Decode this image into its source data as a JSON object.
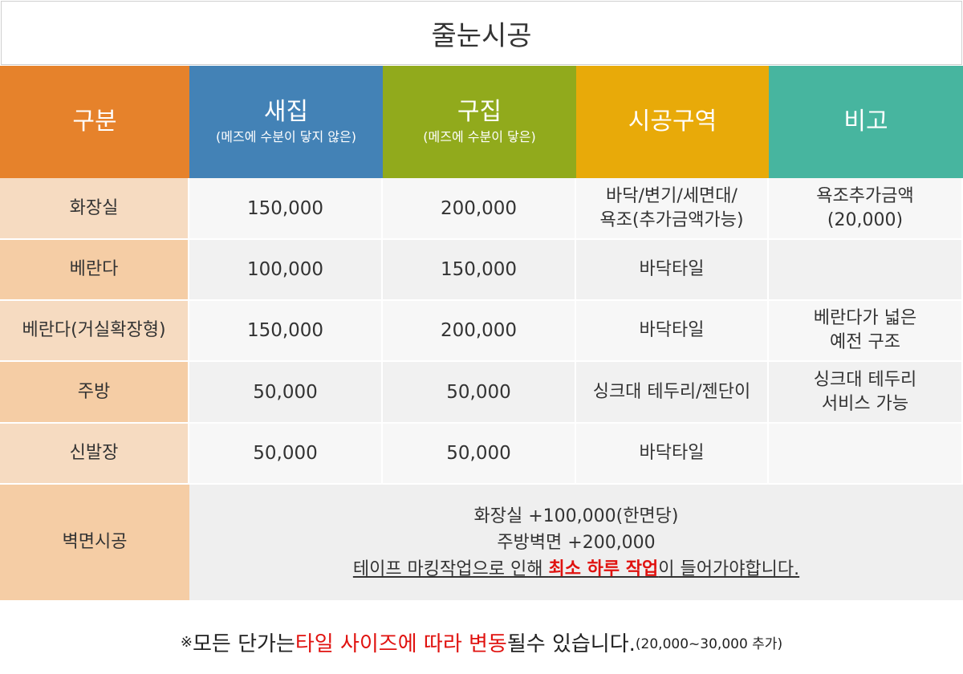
{
  "title": "줄눈시공",
  "headers": {
    "category": "구분",
    "new_house": "새집",
    "new_house_sub": "(메즈에 수분이 닿지 않은)",
    "old_house": "구집",
    "old_house_sub": "(메즈에 수분이 닿은)",
    "area": "시공구역",
    "note": "비고"
  },
  "rows": [
    {
      "category": "화장실",
      "new": "150,000",
      "old": "200,000",
      "area_line1": "바닥/변기/세면대/",
      "area_line2": "욕조(추가금액가능)",
      "note_line1": "욕조추가금액",
      "note_line2": "(20,000)"
    },
    {
      "category": "베란다",
      "new": "100,000",
      "old": "150,000",
      "area": "바닥타일"
    },
    {
      "category": "베란다(거실확장형)",
      "new": "150,000",
      "old": "200,000",
      "area": "바닥타일",
      "note_line1": "베란다가 넓은",
      "note_line2": "예전 구조"
    },
    {
      "category": "주방",
      "new": "50,000",
      "old": "50,000",
      "area": "싱크대 테두리/젠단이",
      "note_line1": "싱크대 테두리",
      "note_line2": "서비스 가능"
    },
    {
      "category": "신발장",
      "new": "50,000",
      "old": "50,000",
      "area": "바닥타일"
    }
  ],
  "wall": {
    "category": "벽면시공",
    "line1": "화장실 +100,000(한면당)",
    "line2": "주방벽면 +200,000",
    "line3_pre": "테이프 마킹작업으로 인해 ",
    "line3_red": "최소 하루 작업",
    "line3_post": "이 들어가야합니다."
  },
  "footer": {
    "mark": "※",
    "pre": "모든 단가는 ",
    "red": "타일 사이즈에 따라 변동",
    "post": "될수 있습니다.",
    "small": "(20,000~30,000 추가)"
  },
  "colors": {
    "header_category": "#e6822b",
    "header_new": "#4382b6",
    "header_old": "#91aa1c",
    "header_area": "#e8aa09",
    "header_note": "#47b59f",
    "highlight_red": "#e0120f"
  }
}
